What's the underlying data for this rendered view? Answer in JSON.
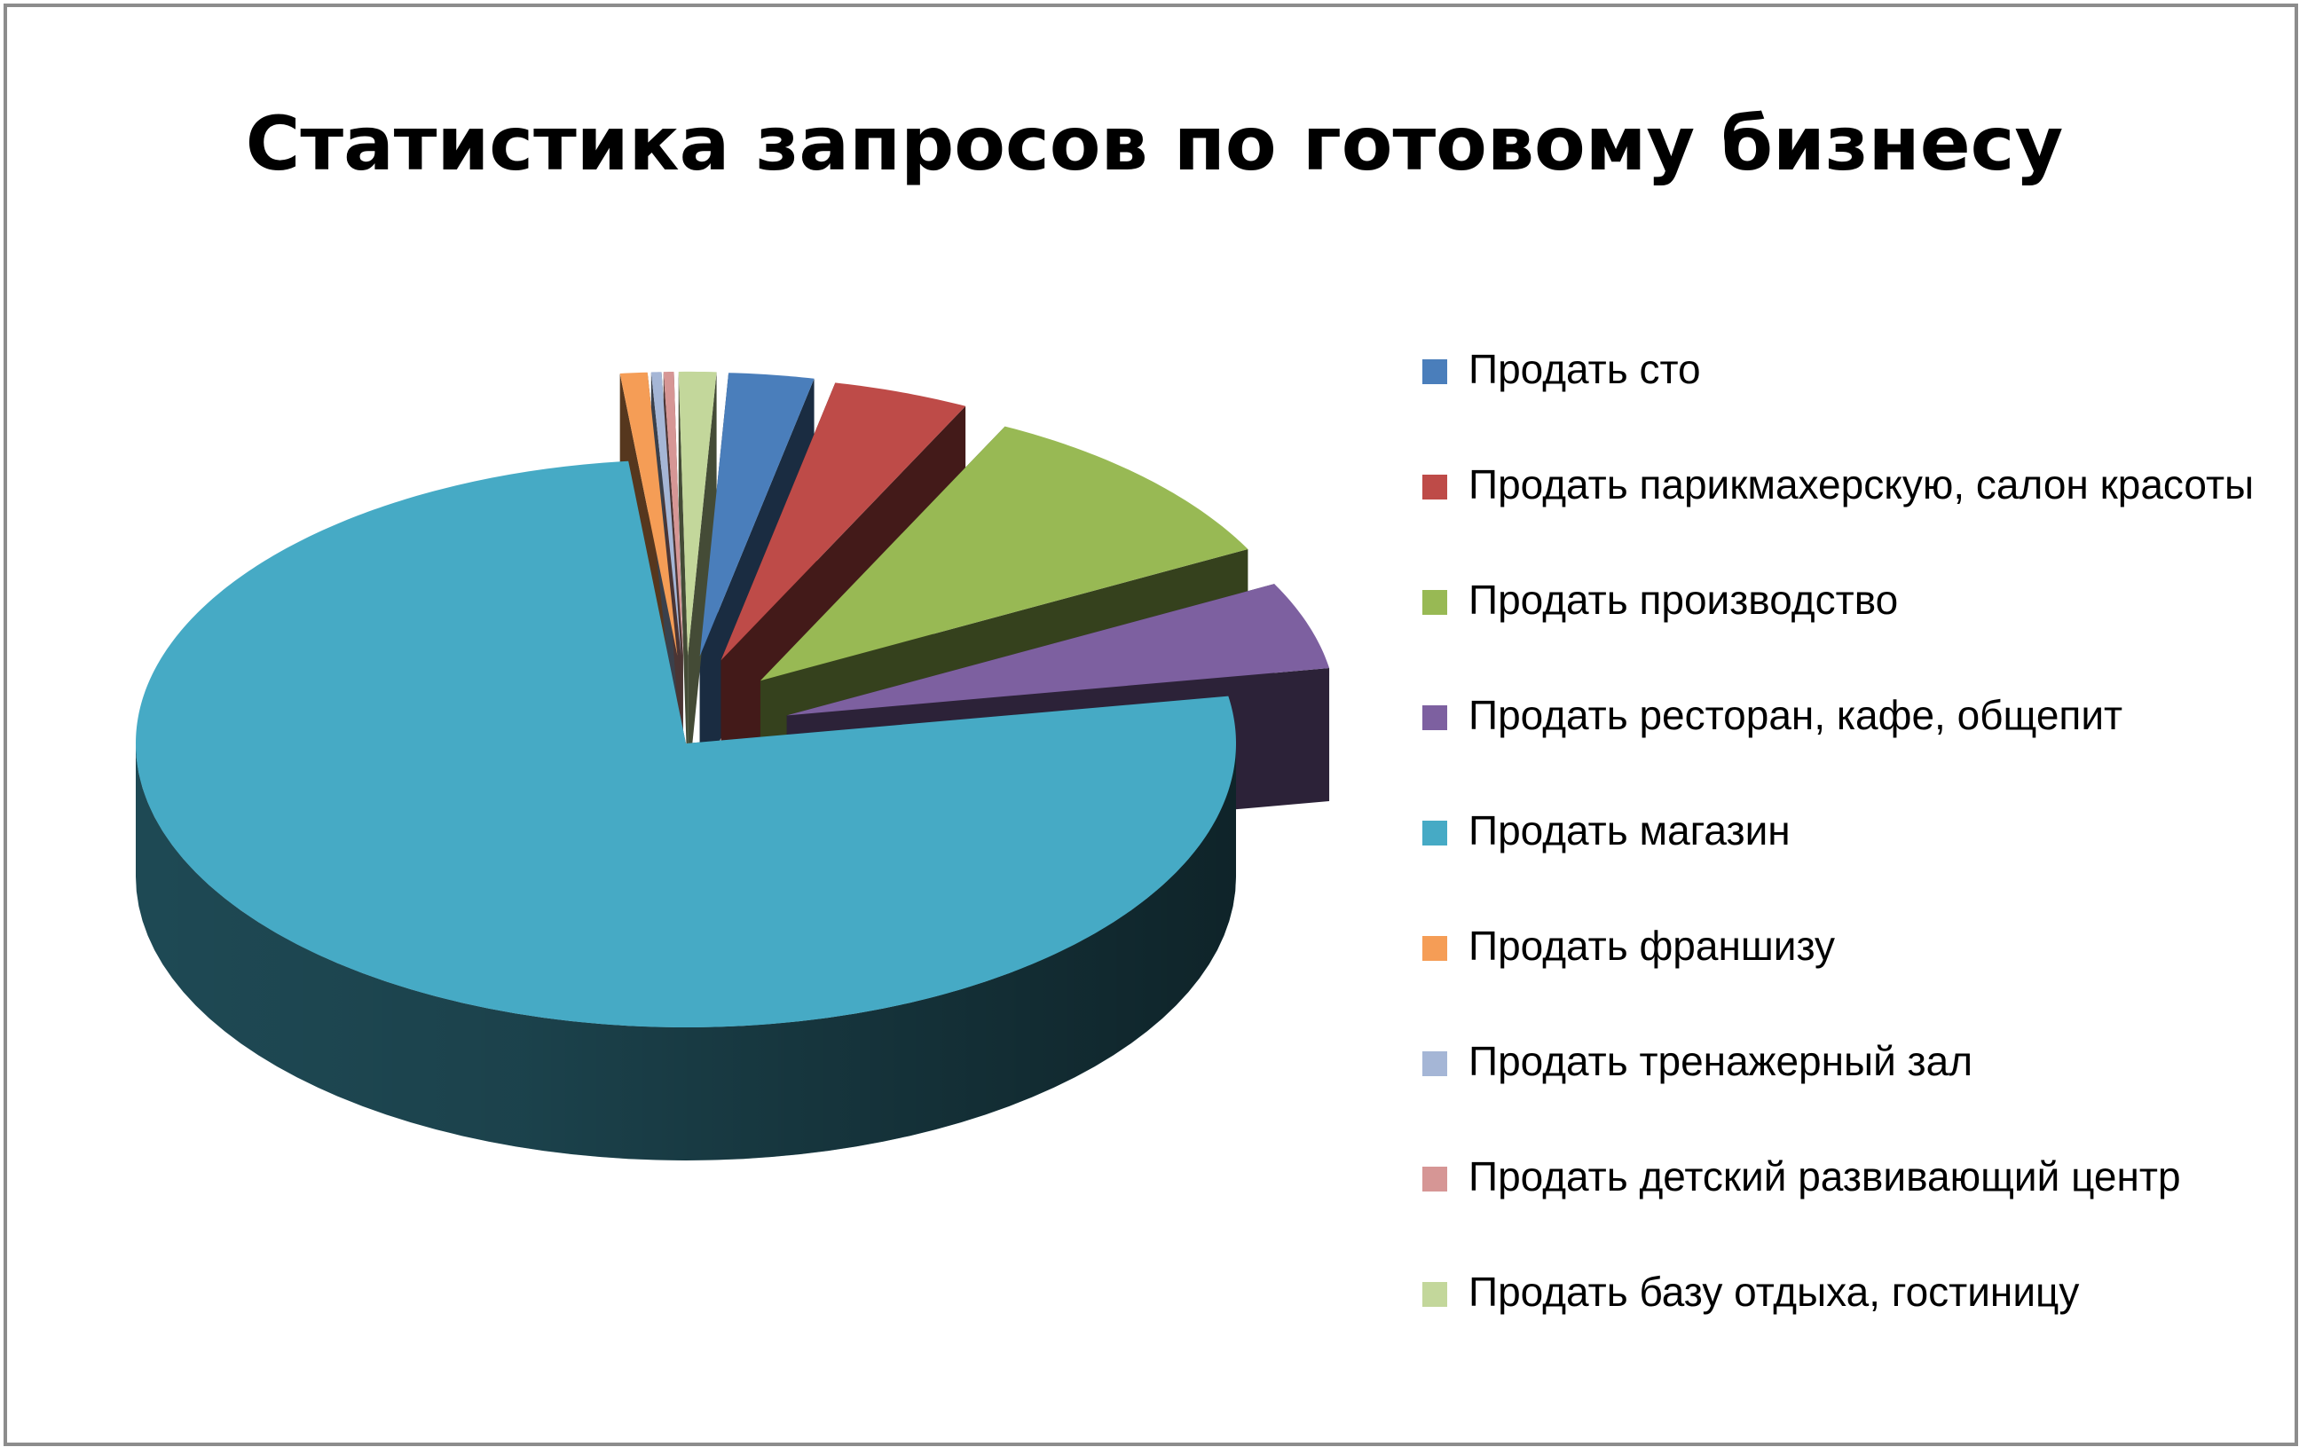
{
  "chart_data": {
    "type": "pie",
    "title": "Статистика запросов по готовому бизнесу",
    "variant": "3d-exploded",
    "legend_position": "right",
    "categories": [
      "Продать сто",
      "Продать парикмахерскую, салон красоты",
      "Продать производство",
      "Продать ресторан, кафе, общепит",
      "Продать магазин",
      "Продать франшизу",
      "Продать тренажерный зал",
      "Продать детский развивающий  центр",
      "Продать базу отдыха, гостиницу"
    ],
    "values": [
      2.5,
      4,
      10,
      5,
      76,
      0.8,
      0.3,
      0.3,
      1.1
    ],
    "colors": [
      "#4a7ebb",
      "#be4b48",
      "#98b954",
      "#7d60a0",
      "#46aac5",
      "#f59d56",
      "#a5b6d6",
      "#d69695",
      "#c3d79b"
    ]
  }
}
